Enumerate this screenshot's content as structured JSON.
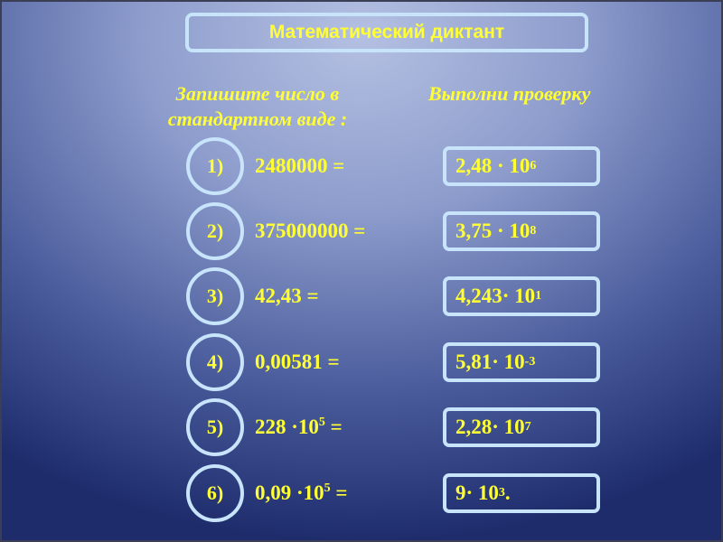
{
  "title": "Математический диктант",
  "left_header": {
    "line1": "Запишите число в",
    "line2": "стандартном виде :"
  },
  "right_header": "Выполни проверку",
  "rows": [
    {
      "num": "1)",
      "expr": {
        "text": "2480000 =",
        "sup": "",
        "suffix": ""
      },
      "answer": {
        "text": "2,48 · 10",
        "sup": "6",
        "suffix": ""
      }
    },
    {
      "num": "2)",
      "expr": {
        "text": "375000000 =",
        "sup": "",
        "suffix": ""
      },
      "answer": {
        "text": "3,75 · 10",
        "sup": "8",
        "suffix": ""
      }
    },
    {
      "num": "3)",
      "expr": {
        "text": "42,43 =",
        "sup": "",
        "suffix": ""
      },
      "answer": {
        "text": "4,243· 10",
        "sup": "1",
        "suffix": ""
      }
    },
    {
      "num": "4)",
      "expr": {
        "text": "0,00581 =",
        "sup": "",
        "suffix": ""
      },
      "answer": {
        "text": "5,81· 10",
        "sup": "-3",
        "suffix": ""
      }
    },
    {
      "num": "5)",
      "expr": {
        "text": "228 ·10",
        "sup": "5",
        "suffix": " ="
      },
      "answer": {
        "text": "2,28· 10",
        "sup": "7",
        "suffix": ""
      }
    },
    {
      "num": "6)",
      "expr": {
        "text": "0,09 ·10",
        "sup": "5",
        "suffix": " ="
      },
      "answer": {
        "text": "9· 10",
        "sup": "3",
        "suffix": "."
      }
    }
  ],
  "colors": {
    "text": "#ffff33",
    "border": "#c8e4fb",
    "bg_dark": "#1e2c6c",
    "bg_light": "#b4c0e2"
  }
}
